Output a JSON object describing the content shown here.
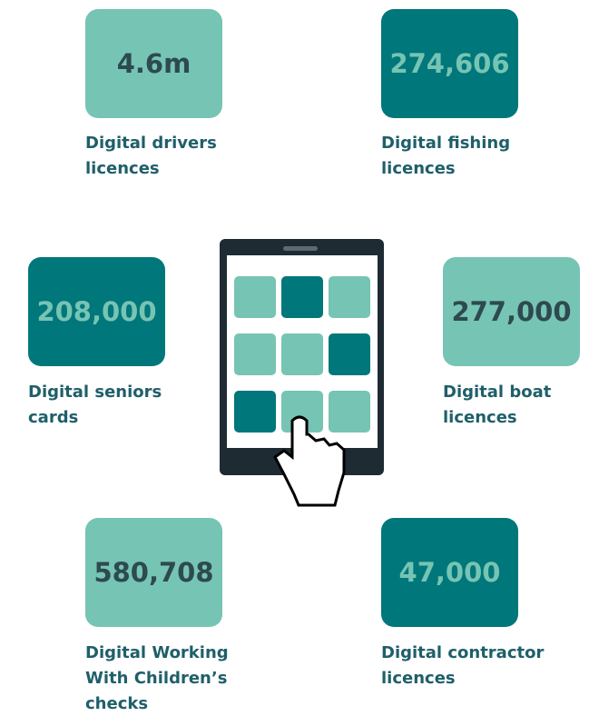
{
  "items": [
    {
      "value": "4.6m",
      "label": [
        "Digital drivers",
        "licences"
      ]
    },
    {
      "value": "274,606",
      "label": [
        "Digital fishing",
        "licences"
      ]
    },
    {
      "value": "208,000",
      "label": [
        "Digital seniors",
        "cards"
      ]
    },
    {
      "value": "277,000",
      "label": [
        "Digital boat",
        "licences"
      ]
    },
    {
      "value": "580,708",
      "label": [
        "Digital Working",
        "With Children’s",
        "checks"
      ]
    },
    {
      "value": "47,000",
      "label": [
        "Digital contractor",
        "licences"
      ]
    }
  ]
}
